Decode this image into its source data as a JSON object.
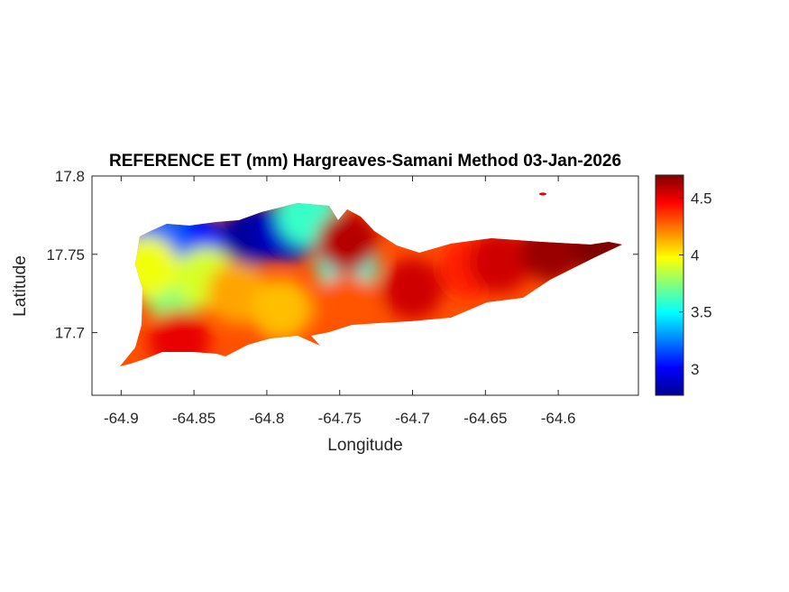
{
  "chart_data": {
    "type": "heatmap",
    "title": "REFERENCE ET (mm) Hargreaves-Samani Method  03-Jan-2026",
    "xlabel": "Longitude",
    "ylabel": "Latitude",
    "xlim": [
      -64.92,
      -64.545
    ],
    "ylim": [
      17.66,
      17.8
    ],
    "x_ticks": [
      -64.9,
      -64.85,
      -64.8,
      -64.75,
      -64.7,
      -64.65,
      -64.6
    ],
    "x_tick_labels": [
      "-64.9",
      "-64.85",
      "-64.8",
      "-64.75",
      "-64.7",
      "-64.65",
      "-64.6"
    ],
    "y_ticks": [
      17.7,
      17.75,
      17.8
    ],
    "y_tick_labels": [
      "17.7",
      "17.75",
      "17.8"
    ],
    "colorbar": {
      "colormap": "jet",
      "clim": [
        2.77,
        4.7
      ],
      "ticks": [
        3,
        3.5,
        4,
        4.5
      ],
      "tick_labels": [
        "3",
        "3.5",
        "4",
        "4.5"
      ]
    },
    "field_samples": [
      {
        "lon": -64.81,
        "lat": 17.762,
        "value": 2.8
      },
      {
        "lon": -64.785,
        "lat": 17.765,
        "value": 2.9
      },
      {
        "lon": -64.85,
        "lat": 17.757,
        "value": 3.05
      },
      {
        "lon": -64.875,
        "lat": 17.758,
        "value": 3.2
      },
      {
        "lon": -64.772,
        "lat": 17.775,
        "value": 3.6
      },
      {
        "lon": -64.745,
        "lat": 17.744,
        "value": 3.55
      },
      {
        "lon": -64.865,
        "lat": 17.728,
        "value": 3.75
      },
      {
        "lon": -64.842,
        "lat": 17.735,
        "value": 3.9
      },
      {
        "lon": -64.882,
        "lat": 17.742,
        "value": 3.95
      },
      {
        "lon": -64.745,
        "lat": 17.758,
        "value": 4.6
      },
      {
        "lon": -64.745,
        "lat": 17.718,
        "value": 4.3
      },
      {
        "lon": -64.82,
        "lat": 17.725,
        "value": 4.15
      },
      {
        "lon": -64.79,
        "lat": 17.715,
        "value": 4.1
      },
      {
        "lon": -64.86,
        "lat": 17.695,
        "value": 4.5
      },
      {
        "lon": -64.7,
        "lat": 17.728,
        "value": 4.55
      },
      {
        "lon": -64.66,
        "lat": 17.742,
        "value": 4.4
      },
      {
        "lon": -64.64,
        "lat": 17.745,
        "value": 4.55
      },
      {
        "lon": -64.605,
        "lat": 17.752,
        "value": 4.65
      },
      {
        "lon": -64.57,
        "lat": 17.755,
        "value": 4.7
      },
      {
        "lon": -64.622,
        "lat": 17.787,
        "value": 4.6
      }
    ]
  },
  "colors": {
    "jet": [
      "#00008f",
      "#0000ff",
      "#0080ff",
      "#00ffff",
      "#80ff80",
      "#ffff00",
      "#ff8000",
      "#ff0000",
      "#800000"
    ]
  }
}
